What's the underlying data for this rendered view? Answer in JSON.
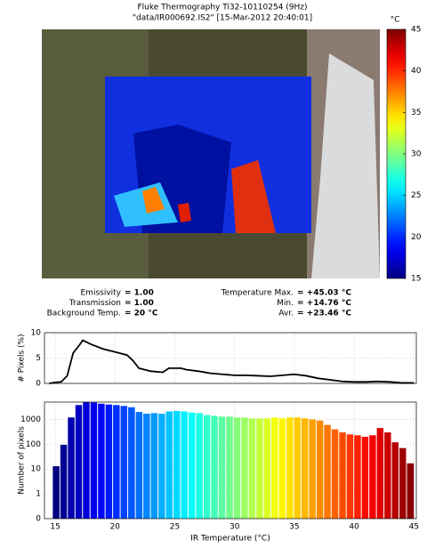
{
  "header": {
    "title": "Fluke Thermography Ti32-10110254 (9Hz)",
    "subtitle": "\"data/IR000692.IS2\" [15-Mar-2012 20:40:01]"
  },
  "info": {
    "left": [
      {
        "label": "Emissivity",
        "value": "= 1.00"
      },
      {
        "label": "Transmission",
        "value": "= 1.00"
      },
      {
        "label": "Background Temp.",
        "value": "= 20 °C"
      }
    ],
    "right": [
      {
        "label": "Temperature Max.",
        "value": "= +45.03 °C"
      },
      {
        "label": "Min.",
        "value": "= +14.76 °C"
      },
      {
        "label": "Avr.",
        "value": "= +23.46 °C"
      }
    ]
  },
  "chart_data": [
    {
      "type": "colorbar",
      "label": "°C",
      "colormap": "jet",
      "ylim": [
        15,
        45
      ],
      "yticks": [
        15,
        20,
        25,
        30,
        35,
        40,
        45
      ]
    },
    {
      "type": "line",
      "ylabel": "# Pixels (%)",
      "color": "#000000",
      "grid": true,
      "x": [
        14.5,
        15,
        15.5,
        16,
        16.5,
        17,
        17.3,
        18,
        19,
        20,
        21,
        21.5,
        22,
        23,
        24,
        24.5,
        25.5,
        26,
        27,
        28,
        29,
        30,
        31,
        32,
        33,
        34,
        35,
        36,
        37,
        38,
        39,
        40,
        41,
        42,
        43,
        44,
        45
      ],
      "values": [
        0,
        0.2,
        0.3,
        1.5,
        6,
        7.5,
        8.5,
        7.7,
        6.8,
        6.2,
        5.6,
        4.5,
        3,
        2.4,
        2.2,
        3,
        3,
        2.7,
        2.4,
        2,
        1.8,
        1.6,
        1.6,
        1.5,
        1.4,
        1.6,
        1.8,
        1.5,
        1,
        0.7,
        0.4,
        0.3,
        0.3,
        0.4,
        0.3,
        0.1,
        0.1
      ],
      "xlim": [
        14.1,
        45.2
      ],
      "xticks": [
        15,
        20,
        25,
        30,
        35,
        40,
        45
      ],
      "ylim": [
        0,
        10
      ],
      "yticks": [
        0,
        5,
        10
      ]
    },
    {
      "type": "histogram",
      "ylabel": "Number of pixels",
      "xlabel": "IR Temperature (°C)",
      "log_y": true,
      "grid": true,
      "colormap": "jet",
      "bins": [
        14.76,
        15.39,
        16.02,
        16.65,
        17.28,
        17.91,
        18.54,
        19.17,
        19.8,
        20.43,
        21.06,
        21.7,
        22.33,
        22.96,
        23.59,
        24.22,
        24.85,
        25.48,
        26.11,
        26.74,
        27.37,
        28.0,
        28.63,
        29.26,
        29.89,
        30.52,
        31.15,
        31.78,
        32.41,
        33.04,
        33.67,
        34.3,
        34.93,
        35.56,
        36.19,
        36.82,
        37.45,
        38.08,
        38.71,
        39.34,
        39.97,
        40.6,
        41.23,
        41.86,
        42.49,
        43.12,
        43.75,
        44.38,
        45.03
      ],
      "values": [
        13,
        95,
        1200,
        3800,
        5000,
        4800,
        4300,
        4000,
        3800,
        3500,
        3100,
        2000,
        1700,
        1800,
        1700,
        2100,
        2200,
        2100,
        1900,
        1800,
        1500,
        1400,
        1300,
        1300,
        1200,
        1200,
        1100,
        1100,
        1100,
        1200,
        1100,
        1200,
        1200,
        1100,
        1000,
        900,
        600,
        400,
        300,
        250,
        230,
        200,
        230,
        450,
        300,
        120,
        70,
        17
      ],
      "xlim": [
        14.1,
        45.2
      ],
      "xticks": [
        15,
        20,
        25,
        30,
        35,
        40,
        45
      ],
      "ylim": [
        0.1,
        5000
      ],
      "yticks": [
        {
          "value": 0.1,
          "label": "0"
        },
        1,
        10,
        100,
        1000
      ]
    }
  ]
}
